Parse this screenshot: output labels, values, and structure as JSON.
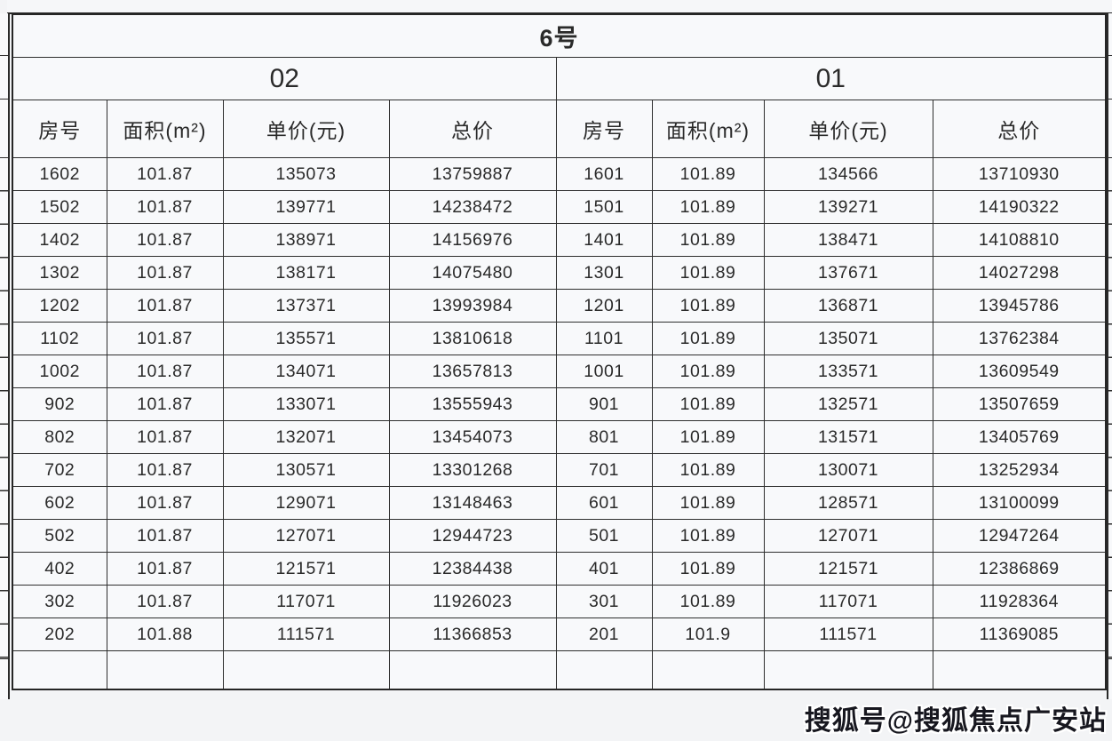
{
  "page": {
    "watermark": "搜狐号@搜狐焦点广安站"
  },
  "table": {
    "building_header": "6号",
    "units": [
      {
        "label": "02"
      },
      {
        "label": "01"
      }
    ],
    "column_headers": [
      "房号",
      "面积(m²)",
      "单价(元)",
      "总价"
    ],
    "rows": [
      [
        "1602",
        "101.87",
        "135073",
        "13759887",
        "1601",
        "101.89",
        "134566",
        "13710930"
      ],
      [
        "1502",
        "101.87",
        "139771",
        "14238472",
        "1501",
        "101.89",
        "139271",
        "14190322"
      ],
      [
        "1402",
        "101.87",
        "138971",
        "14156976",
        "1401",
        "101.89",
        "138471",
        "14108810"
      ],
      [
        "1302",
        "101.87",
        "138171",
        "14075480",
        "1301",
        "101.89",
        "137671",
        "14027298"
      ],
      [
        "1202",
        "101.87",
        "137371",
        "13993984",
        "1201",
        "101.89",
        "136871",
        "13945786"
      ],
      [
        "1102",
        "101.87",
        "135571",
        "13810618",
        "1101",
        "101.89",
        "135071",
        "13762384"
      ],
      [
        "1002",
        "101.87",
        "134071",
        "13657813",
        "1001",
        "101.89",
        "133571",
        "13609549"
      ],
      [
        "902",
        "101.87",
        "133071",
        "13555943",
        "901",
        "101.89",
        "132571",
        "13507659"
      ],
      [
        "802",
        "101.87",
        "132071",
        "13454073",
        "801",
        "101.89",
        "131571",
        "13405769"
      ],
      [
        "702",
        "101.87",
        "130571",
        "13301268",
        "701",
        "101.89",
        "130071",
        "13252934"
      ],
      [
        "602",
        "101.87",
        "129071",
        "13148463",
        "601",
        "101.89",
        "128571",
        "13100099"
      ],
      [
        "502",
        "101.87",
        "127071",
        "12944723",
        "501",
        "101.89",
        "127071",
        "12947264"
      ],
      [
        "402",
        "101.87",
        "121571",
        "12384438",
        "401",
        "101.89",
        "121571",
        "12386869"
      ],
      [
        "302",
        "101.87",
        "117071",
        "11926023",
        "301",
        "101.89",
        "117071",
        "11928364"
      ],
      [
        "202",
        "101.88",
        "111571",
        "11366853",
        "201",
        "101.9",
        "111571",
        "11369085"
      ]
    ]
  }
}
